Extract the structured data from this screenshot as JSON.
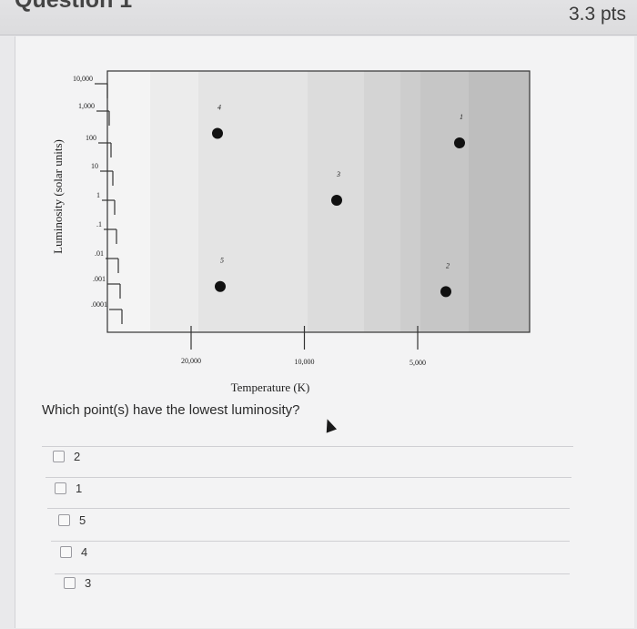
{
  "header": {
    "title": "Question 1",
    "points": "3.3 pts"
  },
  "chart_data": {
    "type": "scatter",
    "xlabel": "Temperature (K)",
    "ylabel": "Luminosity (solar units)",
    "y_tick_labels": [
      "10,000",
      "1,000",
      "100",
      "10",
      "1",
      ".1",
      ".01",
      ".001",
      ".0001"
    ],
    "x_tick_labels": [
      "20,000",
      "10,000",
      "5,000"
    ],
    "x_scale": "log-reversed",
    "y_scale": "log",
    "points": [
      {
        "label": "1",
        "temperature": 4000,
        "luminosity": 100
      },
      {
        "label": "2",
        "temperature": 4000,
        "luminosity": 0.0005
      },
      {
        "label": "3",
        "temperature": 8000,
        "luminosity": 1
      },
      {
        "label": "4",
        "temperature": 18000,
        "luminosity": 200
      },
      {
        "label": "5",
        "temperature": 18000,
        "luminosity": 0.0008
      }
    ]
  },
  "question": {
    "text": "Which point(s) have the lowest luminosity?"
  },
  "answers": [
    {
      "label": "2"
    },
    {
      "label": "1"
    },
    {
      "label": "5"
    },
    {
      "label": "4"
    },
    {
      "label": "3"
    }
  ],
  "colors": {
    "point": "#111111",
    "plot_background": "#d8d8d8"
  }
}
